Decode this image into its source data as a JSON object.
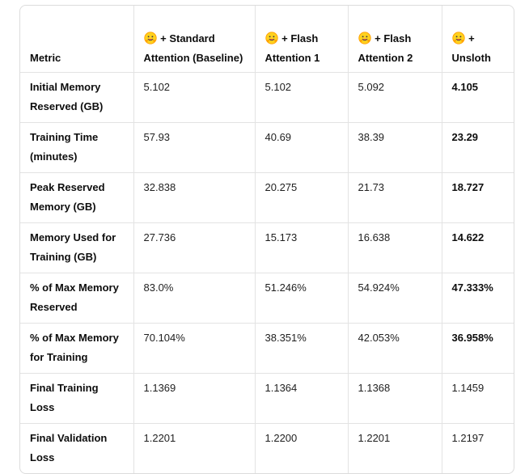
{
  "table": {
    "headers": [
      {
        "label": "Metric",
        "icon": ""
      },
      {
        "label": "+ Standard Attention (Baseline)",
        "icon": "hugging-face-emoji"
      },
      {
        "label": "+ Flash Attention 1",
        "icon": "hugging-face-emoji"
      },
      {
        "label": "+ Flash Attention 2",
        "icon": "hugging-face-emoji"
      },
      {
        "label": "+ Unsloth",
        "icon": "hugging-face-emoji"
      }
    ],
    "rows": [
      {
        "metric": "Initial Memory Reserved (GB)",
        "values": [
          "5.102",
          "5.102",
          "5.092",
          "4.105"
        ],
        "best_index": 3
      },
      {
        "metric": "Training Time (minutes)",
        "values": [
          "57.93",
          "40.69",
          "38.39",
          "23.29"
        ],
        "best_index": 3
      },
      {
        "metric": "Peak Reserved Memory (GB)",
        "values": [
          "32.838",
          "20.275",
          "21.73",
          "18.727"
        ],
        "best_index": 3
      },
      {
        "metric": "Memory Used for Training (GB)",
        "values": [
          "27.736",
          "15.173",
          "16.638",
          "14.622"
        ],
        "best_index": 3
      },
      {
        "metric": "% of Max Memory Reserved",
        "values": [
          "83.0%",
          "51.246%",
          "54.924%",
          "47.333%"
        ],
        "best_index": 3
      },
      {
        "metric": "% of Max Memory for Training",
        "values": [
          "70.104%",
          "38.351%",
          "42.053%",
          "36.958%"
        ],
        "best_index": 3
      },
      {
        "metric": "Final Training Loss",
        "values": [
          "1.1369",
          "1.1364",
          "1.1368",
          "1.1459"
        ],
        "best_index": -1
      },
      {
        "metric": "Final Validation Loss",
        "values": [
          "1.2201",
          "1.2200",
          "1.2201",
          "1.2197"
        ],
        "best_index": -1
      }
    ]
  },
  "colors": {
    "border": "#e3e3e3",
    "outer_border": "#dcdcdc",
    "text": "#0d0d0d",
    "emoji_face": "#ffd21e",
    "emoji_outline": "#ff9d00"
  }
}
